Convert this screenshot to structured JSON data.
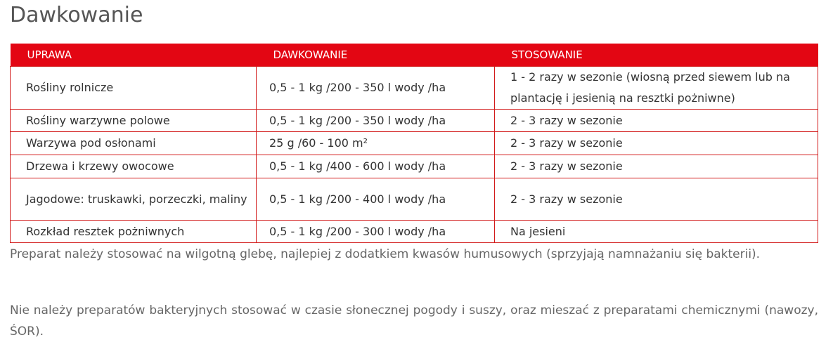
{
  "title": "Dawkowanie",
  "table": {
    "headers": [
      "UPRAWA",
      "DAWKOWANIE",
      "STOSOWANIE"
    ],
    "rows": [
      [
        "Rośliny rolnicze",
        "0,5 - 1 kg /200 - 350 l wody /ha",
        "1 - 2 razy w sezonie (wiosną przed siewem lub na plantację i jesienią na resztki pożniwne)"
      ],
      [
        "Rośliny warzywne polowe",
        "0,5 - 1 kg /200 - 350 l wody /ha",
        "2 - 3 razy w sezonie"
      ],
      [
        "Warzywa pod osłonami",
        "25 g /60 - 100 m²",
        "2 - 3 razy w sezonie"
      ],
      [
        "Drzewa i krzewy owocowe",
        "0,5 - 1 kg /400 - 600 l wody /ha",
        "2 - 3 razy w sezonie"
      ],
      [
        "Jagodowe: truskawki, porzeczki, maliny",
        "0,5 - 1 kg /200 - 400 l wody /ha",
        "2 - 3 razy w sezonie"
      ],
      [
        "Rozkład resztek pożniwnych",
        "0,5 - 1 kg /200 - 300 l wody /ha",
        "Na jesieni"
      ]
    ]
  },
  "paragraphs": [
    "Preparat należy stosować na wilgotną glebę, najlepiej z dodatkiem kwasów humusowych (sprzyjają namnażaniu się bakterii).",
    "Nie należy preparatów bakteryjnych stosować w czasie słonecznej pogody i suszy, oraz mieszać z preparatami chemicznymi (nawozy, ŚOR)."
  ],
  "colors": {
    "accent": "#e30613",
    "border": "#d21a1a"
  }
}
